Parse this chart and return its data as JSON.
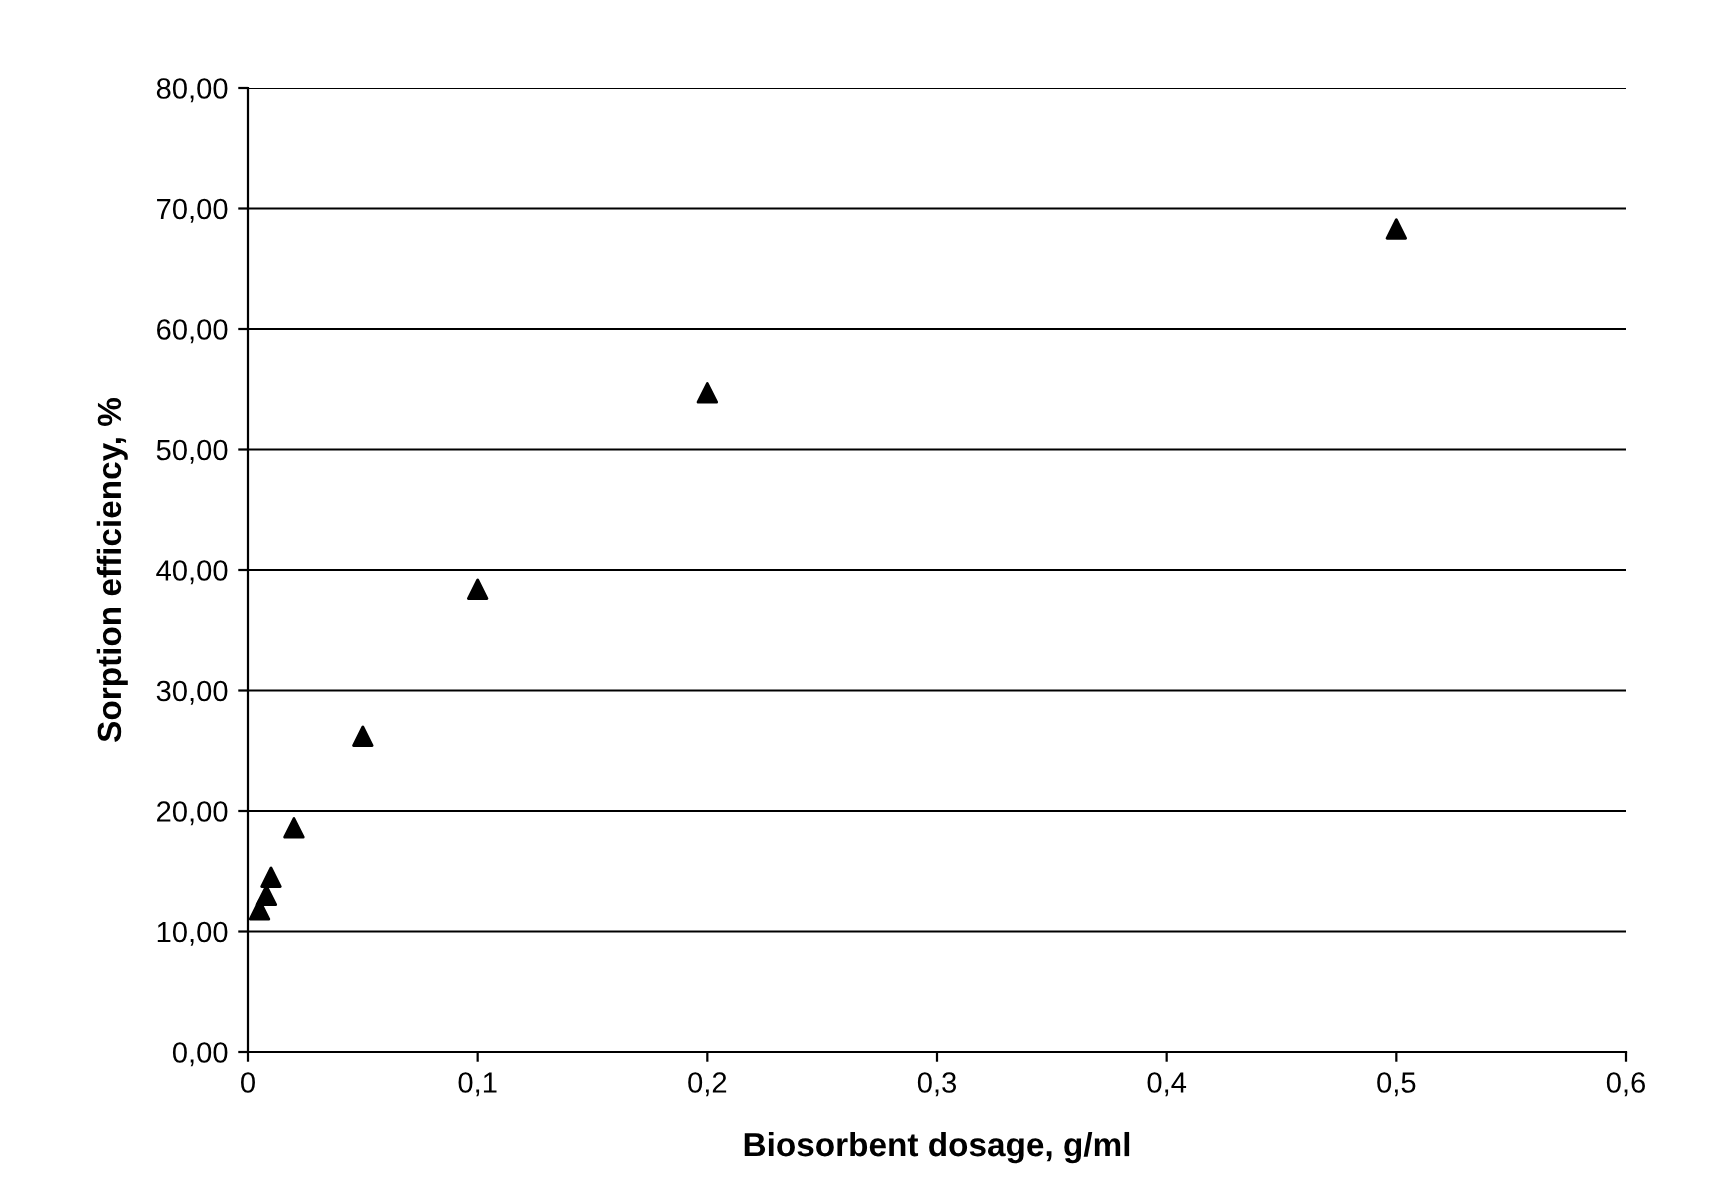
{
  "chart_data": {
    "type": "scatter",
    "xlabel": "Biosorbent dosage, g/ml",
    "ylabel": "Sorption efficiency, %",
    "x": [
      0.005,
      0.008,
      0.01,
      0.02,
      0.05,
      0.1,
      0.2,
      0.5
    ],
    "series": [
      {
        "color": "#000000",
        "values": [
          11.8,
          13.0,
          14.5,
          18.6,
          26.2,
          38.4,
          54.7,
          68.3
        ]
      }
    ],
    "xlim": [
      0,
      0.6
    ],
    "ylim": [
      0,
      80
    ],
    "xticks": [
      0,
      {
        "value": 0.1,
        "label": "0,1"
      },
      {
        "value": 0.2,
        "label": "0,2"
      },
      {
        "value": 0.3,
        "label": "0,3"
      },
      {
        "value": 0.4,
        "label": "0,4"
      },
      {
        "value": 0.5,
        "label": "0,5"
      },
      {
        "value": 0.6,
        "label": "0,6"
      }
    ],
    "yticks": [
      {
        "value": 0,
        "label": "0,00"
      },
      {
        "value": 10,
        "label": "10,00"
      },
      {
        "value": 20,
        "label": "20,00"
      },
      {
        "value": 30,
        "label": "30,00"
      },
      {
        "value": 40,
        "label": "40,00"
      },
      {
        "value": 50,
        "label": "50,00"
      },
      {
        "value": 60,
        "label": "60,00"
      },
      {
        "value": 70,
        "label": "70,00"
      },
      {
        "value": 80,
        "label": "80,00"
      }
    ],
    "grid": "y",
    "marker": "triangle"
  }
}
